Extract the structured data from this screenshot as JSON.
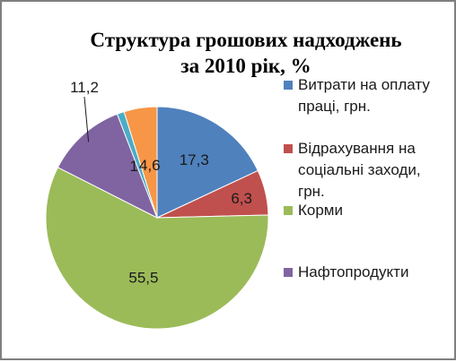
{
  "chart_data": {
    "type": "pie",
    "title_lines": [
      "Структура  грошових надходжень",
      "за 2010 рік, %"
    ],
    "slices": [
      {
        "label": "Витрати на оплату праці, грн.",
        "value": 17.3,
        "value_label": "17,3",
        "color": "#4F81BD",
        "legend_lines": [
          "Витрати на оплату",
          "праці, грн."
        ]
      },
      {
        "label": "Відрахування на соціальні заходи, грн.",
        "value": 6.3,
        "value_label": "6,3",
        "color": "#C0504D",
        "legend_lines": [
          "Відрахування на",
          "соціальні заходи,",
          "грн."
        ]
      },
      {
        "label": "Корми",
        "value": 55.5,
        "value_label": "55,5",
        "color": "#9BBB59",
        "legend_lines": [
          "Корми"
        ]
      },
      {
        "label": "Нафтопродукти",
        "value": 11.2,
        "value_label": "11,2",
        "color": "#8064A2",
        "legend_lines": [
          "Нафтопродукти"
        ]
      },
      {
        "label": "",
        "value": 1.0,
        "value_label": "1",
        "color": "#4BACC6",
        "legend_lines": []
      },
      {
        "label": "",
        "value": 4.6,
        "value_label": "4,6",
        "color": "#F79646",
        "legend_lines": []
      }
    ],
    "legend_position": "right"
  }
}
